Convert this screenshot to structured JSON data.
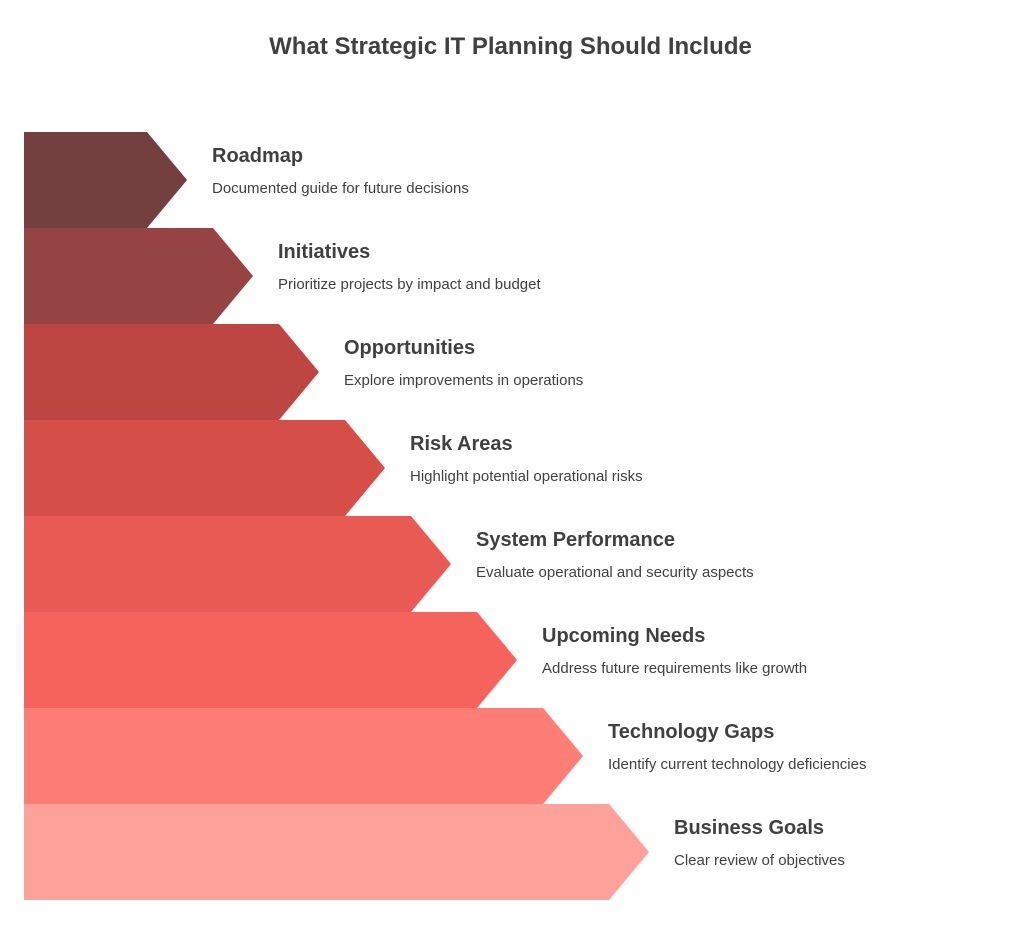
{
  "title": "What Strategic IT Planning Should Include",
  "steps": [
    {
      "title": "Roadmap",
      "description": "Documented guide for future decisions",
      "color": "#743F3F"
    },
    {
      "title": "Initiatives",
      "description": "Prioritize projects by impact and budget",
      "color": "#954443"
    },
    {
      "title": "Opportunities",
      "description": "Explore improvements in operations",
      "color": "#BD4542"
    },
    {
      "title": "Risk Areas",
      "description": "Highlight potential operational risks",
      "color": "#D54E48"
    },
    {
      "title": "System Performance",
      "description": "Evaluate operational and security aspects",
      "color": "#E95A54"
    },
    {
      "title": "Upcoming Needs",
      "description": "Address future requirements like growth",
      "color": "#F6625C"
    },
    {
      "title": "Technology Gaps",
      "description": "Identify current technology deficiencies",
      "color": "#FE7D75"
    },
    {
      "title": "Business Goals",
      "description": "Clear review of objectives",
      "color": "#FEA19A"
    }
  ]
}
